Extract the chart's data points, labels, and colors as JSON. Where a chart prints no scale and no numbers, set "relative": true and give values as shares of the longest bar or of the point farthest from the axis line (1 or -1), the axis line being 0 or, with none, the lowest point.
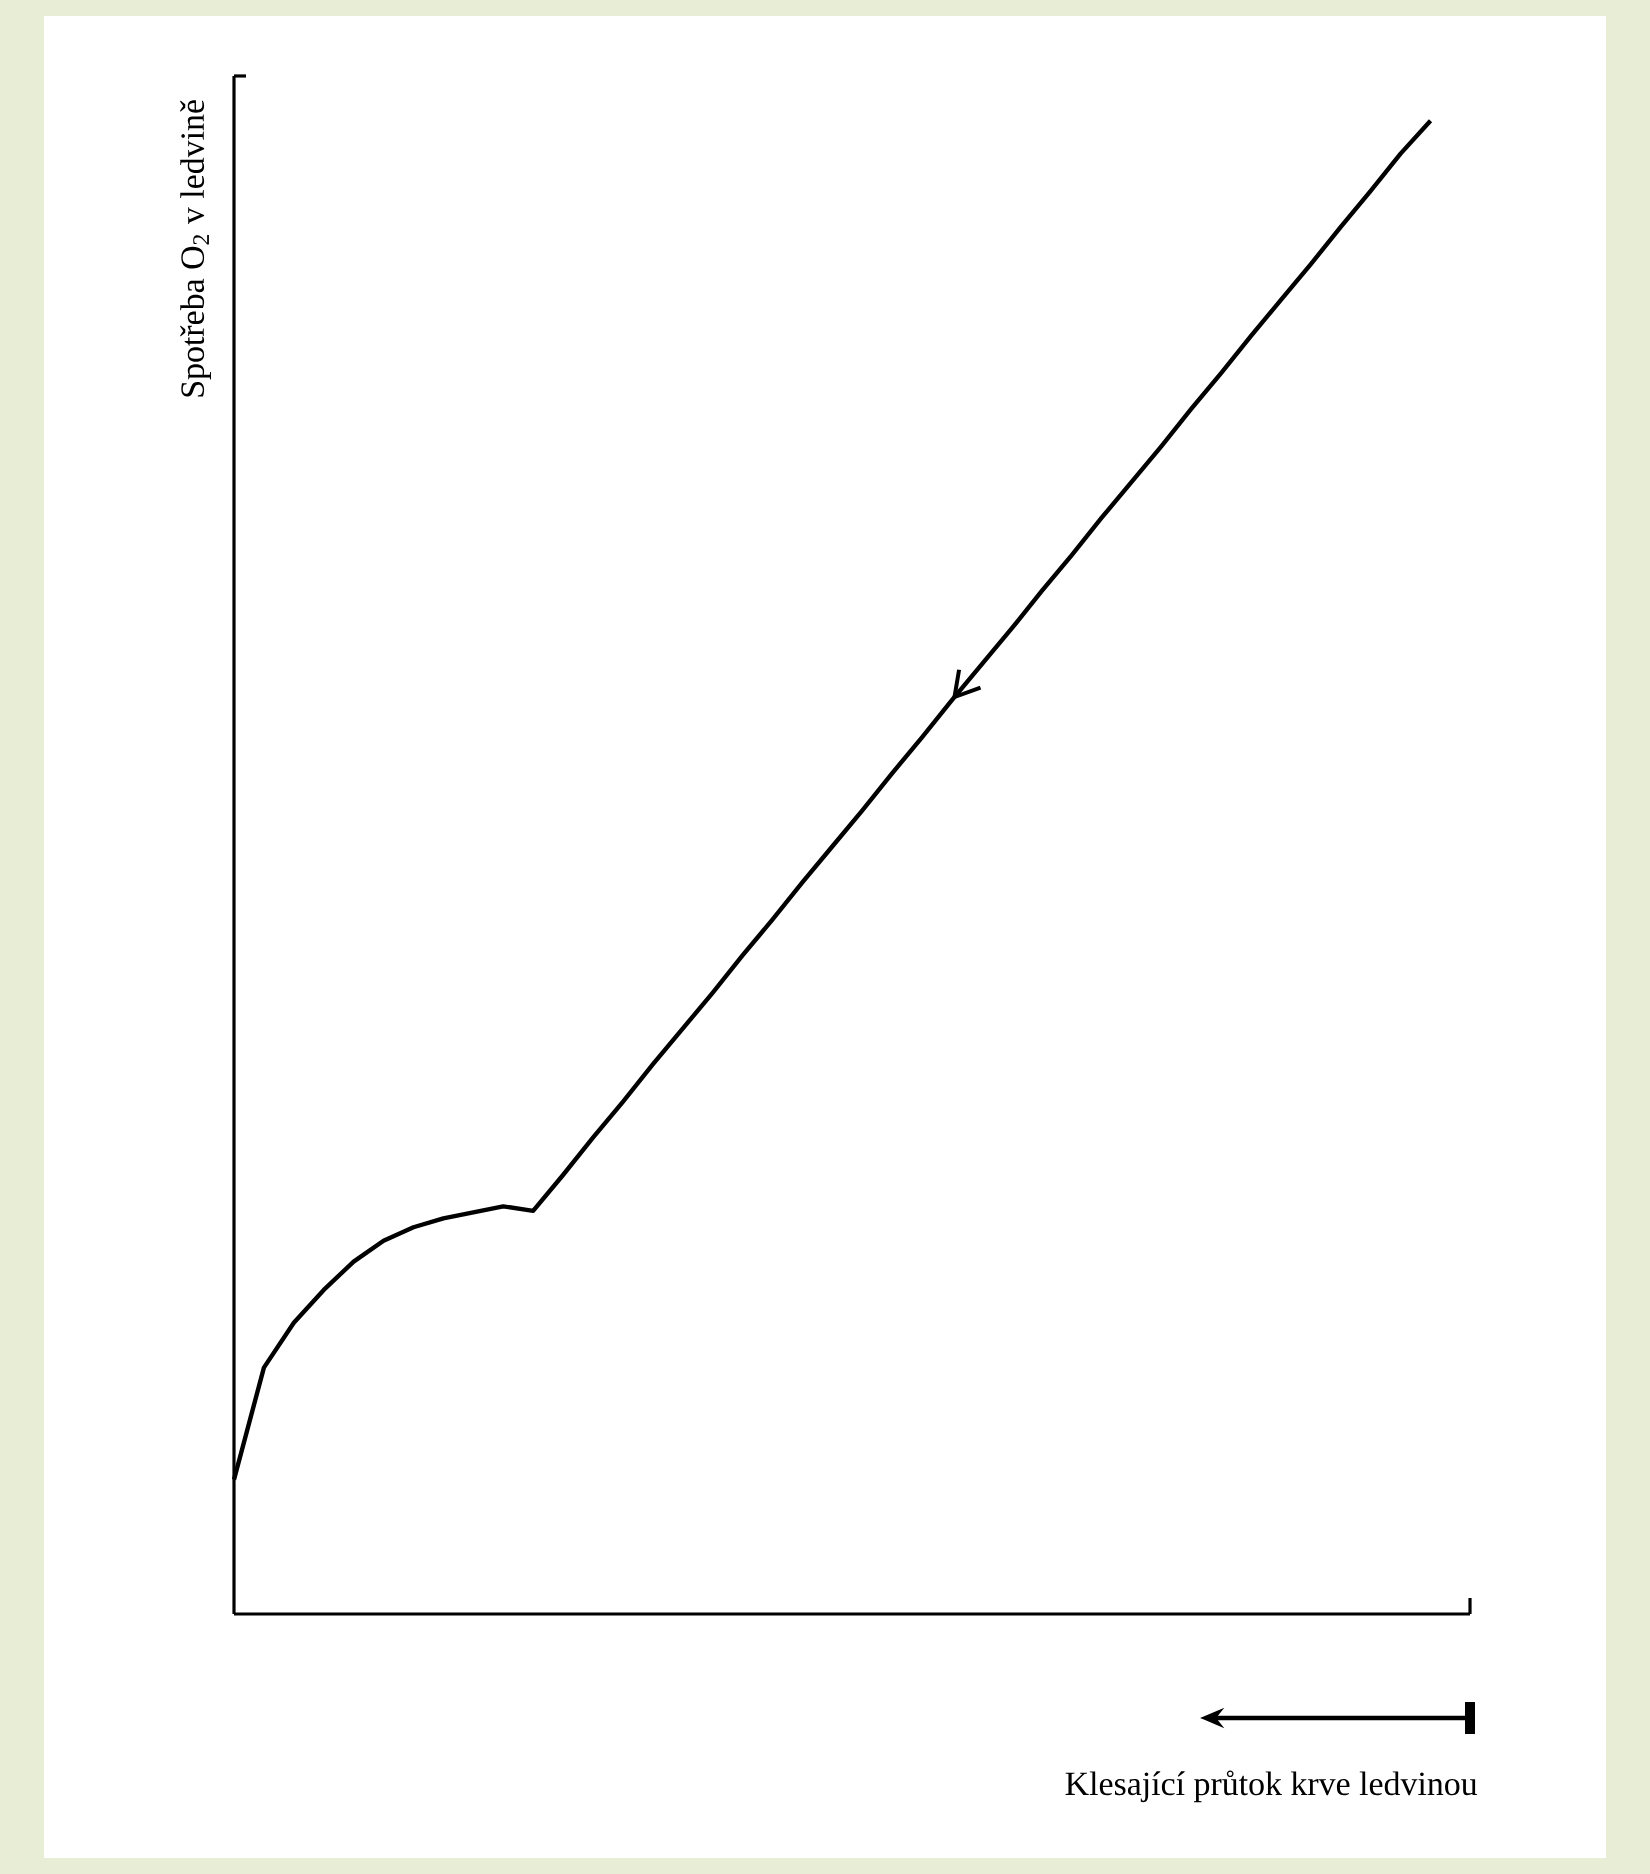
{
  "chart_data": {
    "type": "line",
    "relative": true,
    "xlabel": "Klesající průtok krve ledvinou",
    "ylabel": "Spotřeba O$_{2}$ v ledvině",
    "categories": [
      null,
      null,
      null,
      null,
      null,
      null,
      null,
      null,
      null,
      null,
      null,
      null,
      null,
      null,
      null,
      null,
      null,
      null,
      null,
      null,
      null,
      null,
      null,
      null,
      null,
      null,
      null,
      null,
      null,
      null,
      null,
      null,
      null,
      null,
      null,
      null,
      null,
      null,
      null,
      null,
      null
    ],
    "values": [
      0.09,
      0.165,
      0.195,
      0.217,
      0.236,
      0.25,
      0.259,
      0.265,
      0.269,
      0.273,
      0.27,
      0.294,
      0.319,
      0.343,
      0.368,
      0.392,
      0.416,
      0.441,
      0.465,
      0.49,
      0.514,
      0.538,
      0.563,
      0.587,
      0.612,
      0.636,
      0.66,
      0.685,
      0.709,
      0.734,
      0.758,
      0.782,
      0.807,
      0.831,
      0.856,
      0.88,
      0.904,
      0.929,
      0.953,
      0.978,
      1.0
    ],
    "color": "#000000",
    "marker": "none",
    "line_style": "solid"
  }
}
